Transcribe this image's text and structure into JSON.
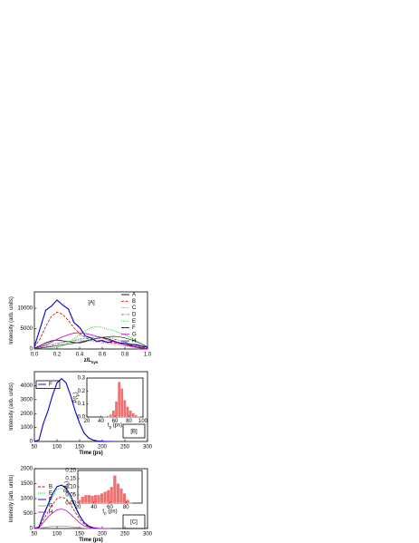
{
  "chart_data": [
    {
      "type": "line",
      "xlabel": [
        "z/L",
        "sys"
      ],
      "ylabel": [
        "Intensity (arb. units)"
      ],
      "annotation": "[A]",
      "x": [
        0,
        0.05,
        0.1,
        0.15,
        0.2,
        0.25,
        0.3,
        0.35,
        0.4,
        0.45,
        0.5,
        0.55,
        0.6,
        0.65,
        0.7,
        0.75,
        0.8,
        0.85,
        0.9,
        0.95,
        1.0
      ],
      "xlim": [
        0,
        1
      ],
      "xticks": [
        {
          "value": 0,
          "label": "0.0"
        },
        0.2,
        0.4,
        0.6,
        0.8,
        {
          "value": 1,
          "label": "1.0"
        }
      ],
      "ylim": [
        0,
        14000
      ],
      "yticks": [
        0,
        5000,
        10000
      ],
      "series": [
        {
          "name": "A",
          "color": "#000000",
          "dash": "solid",
          "values": [
            200,
            800,
            1500,
            2000,
            2200,
            2000,
            1800,
            1600,
            1500,
            1800,
            2300,
            2600,
            2800,
            2500,
            2000,
            1500,
            1100,
            800,
            500,
            300,
            100
          ]
        },
        {
          "name": "B",
          "color": "#d40000",
          "dash": "dashed",
          "values": [
            500,
            2500,
            5500,
            8000,
            9000,
            8500,
            7000,
            5200,
            3800,
            2800,
            2200,
            2000,
            1800,
            1600,
            1500,
            1300,
            1100,
            900,
            700,
            500,
            300
          ]
        },
        {
          "name": "C",
          "color": "#888888",
          "dash": "dotted",
          "values": [
            100,
            400,
            800,
            1200,
            1500,
            1700,
            1900,
            2000,
            2100,
            2000,
            1900,
            1700,
            1500,
            1300,
            1100,
            900,
            700,
            500,
            300,
            200,
            100
          ]
        },
        {
          "name": "D",
          "color": "#5a8a5a",
          "dash": "dashdot",
          "values": [
            100,
            300,
            600,
            900,
            1200,
            1500,
            1800,
            2100,
            2400,
            2600,
            2800,
            3000,
            3000,
            2800,
            2500,
            2100,
            1700,
            1300,
            900,
            500,
            200
          ]
        },
        {
          "name": "E",
          "color": "#00c000",
          "dash": "dotted",
          "values": [
            0,
            0,
            100,
            200,
            400,
            800,
            1500,
            2500,
            3500,
            4500,
            5200,
            5500,
            5300,
            4800,
            4500,
            4000,
            3500,
            2800,
            2000,
            1200,
            500
          ]
        },
        {
          "name": "F",
          "color": "#0000cc",
          "dash": "solid",
          "values": [
            600,
            5000,
            9500,
            10500,
            12000,
            10800,
            9800,
            6500,
            5300,
            3200,
            2700,
            1900,
            2100,
            1600,
            1900,
            1500,
            1500,
            1100,
            1100,
            700,
            500
          ]
        },
        {
          "name": "G",
          "color": "#cc00cc",
          "dash": "solid",
          "values": [
            100,
            500,
            1000,
            1700,
            2400,
            3000,
            3500,
            3900,
            4000,
            3800,
            3500,
            3100,
            2700,
            2200,
            1800,
            1400,
            1000,
            700,
            400,
            200,
            100
          ]
        },
        {
          "name": "H",
          "color": "#444444",
          "dash": "solid",
          "values": [
            50,
            200,
            400,
            600,
            800,
            1000,
            1200,
            1400,
            1700,
            2000,
            2300,
            2600,
            2800,
            3000,
            3100,
            3000,
            2700,
            2300,
            1800,
            1200,
            500
          ]
        }
      ]
    },
    {
      "type": "line",
      "xlabel": [
        "Time (ps)"
      ],
      "ylabel": [
        "Intensity (arb. units)"
      ],
      "annotation": "[B]",
      "x": [
        50,
        60,
        70,
        80,
        90,
        100,
        110,
        120,
        130,
        140,
        150,
        160,
        170,
        180,
        190,
        200,
        210,
        220
      ],
      "xlim": [
        50,
        300
      ],
      "xticks": [
        50,
        100,
        150,
        200,
        250,
        300
      ],
      "ylim": [
        0,
        5000
      ],
      "yticks": [
        0,
        1000,
        2000,
        3000,
        4000
      ],
      "series": [
        {
          "name": "F",
          "color": "#0000cc",
          "dash": "solid",
          "values": [
            0,
            100,
            1300,
            2200,
            3300,
            4200,
            4500,
            4200,
            3300,
            2200,
            1300,
            600,
            250,
            100,
            30,
            10,
            0,
            0
          ]
        }
      ],
      "inset": {
        "type": "histogram",
        "xlabel": [
          "t",
          "p",
          " (ps)"
        ],
        "ylabel": [
          "P(t",
          "p",
          ")"
        ],
        "color": "#f07070",
        "bins": [
          20,
          24,
          28,
          32,
          36,
          40,
          44,
          48,
          52,
          56,
          60,
          64,
          68,
          72,
          76,
          80,
          84,
          88,
          92,
          96,
          100
        ],
        "counts": [
          0,
          0,
          0,
          0,
          0,
          0,
          0.005,
          0.01,
          0.02,
          0.05,
          0.12,
          0.27,
          0.22,
          0.13,
          0.08,
          0.05,
          0.03,
          0.015,
          0.005,
          0
        ],
        "xlim": [
          20,
          100
        ],
        "xticks": [
          20,
          40,
          60,
          80,
          100
        ],
        "ylim": [
          0,
          0.3
        ],
        "yticks": [
          {
            "value": 0,
            "label": "0.0"
          },
          0.1,
          0.2,
          0.3
        ]
      }
    },
    {
      "type": "line",
      "xlabel": [
        "Time (ps)"
      ],
      "ylabel": [
        "Intensity (arb. units)"
      ],
      "annotation": "[C]",
      "x": [
        50,
        60,
        70,
        80,
        90,
        100,
        110,
        120,
        130,
        140,
        150,
        160,
        170,
        180,
        190,
        200,
        210,
        220
      ],
      "xlim": [
        50,
        300
      ],
      "xticks": [
        50,
        100,
        150,
        200,
        250,
        300
      ],
      "ylim": [
        0,
        2000
      ],
      "yticks": [
        0,
        500,
        1000,
        1500,
        2000
      ],
      "series": [
        {
          "name": "B",
          "color": "#d40000",
          "dash": "dashed",
          "values": [
            0,
            30,
            300,
            550,
            800,
            1000,
            1050,
            1000,
            800,
            550,
            320,
            150,
            60,
            20,
            5,
            0,
            0,
            0
          ]
        },
        {
          "name": "E",
          "color": "#00c000",
          "dash": "dotted",
          "values": [
            0,
            40,
            400,
            750,
            1050,
            1300,
            1350,
            1250,
            1000,
            700,
            400,
            200,
            80,
            25,
            5,
            0,
            0,
            0
          ]
        },
        {
          "name": "F",
          "color": "#0000cc",
          "dash": "solid",
          "values": [
            0,
            50,
            450,
            800,
            1150,
            1400,
            1450,
            1350,
            1100,
            750,
            430,
            200,
            80,
            25,
            5,
            0,
            0,
            0
          ]
        },
        {
          "name": "G",
          "color": "#999999",
          "dash": "solid",
          "values": [
            0,
            5,
            30,
            55,
            75,
            80,
            80,
            75,
            60,
            40,
            25,
            12,
            5,
            0,
            0,
            0,
            0,
            0
          ]
        },
        {
          "name": "H",
          "color": "#cc00cc",
          "dash": "solid",
          "values": [
            0,
            20,
            200,
            380,
            520,
            620,
            650,
            600,
            480,
            330,
            190,
            90,
            35,
            10,
            0,
            0,
            0,
            0
          ]
        }
      ],
      "inset": {
        "type": "histogram",
        "xlabel": [
          "t",
          "p",
          " (ps)"
        ],
        "ylabel": [
          "P(t",
          "p",
          ")"
        ],
        "color": "#f07070",
        "bins": [
          20,
          24,
          28,
          32,
          36,
          40,
          44,
          48,
          52,
          56,
          60,
          64,
          68,
          72,
          76,
          80,
          84,
          88,
          92,
          96,
          100
        ],
        "counts": [
          0.02,
          0.04,
          0.05,
          0.05,
          0.045,
          0.05,
          0.05,
          0.06,
          0.07,
          0.08,
          0.1,
          0.17,
          0.12,
          0.09,
          0.06,
          0.02,
          0.005,
          0,
          0,
          0
        ],
        "xlim": [
          20,
          100
        ],
        "xticks": [
          20,
          40,
          60,
          80
        ],
        "ylim": [
          0,
          0.2
        ],
        "yticks": [
          {
            "value": 0,
            "label": "0.00"
          },
          0.05,
          {
            "value": 0.1,
            "label": "0.10"
          },
          0.15,
          {
            "value": 0.2,
            "label": "0.20"
          }
        ]
      }
    }
  ]
}
